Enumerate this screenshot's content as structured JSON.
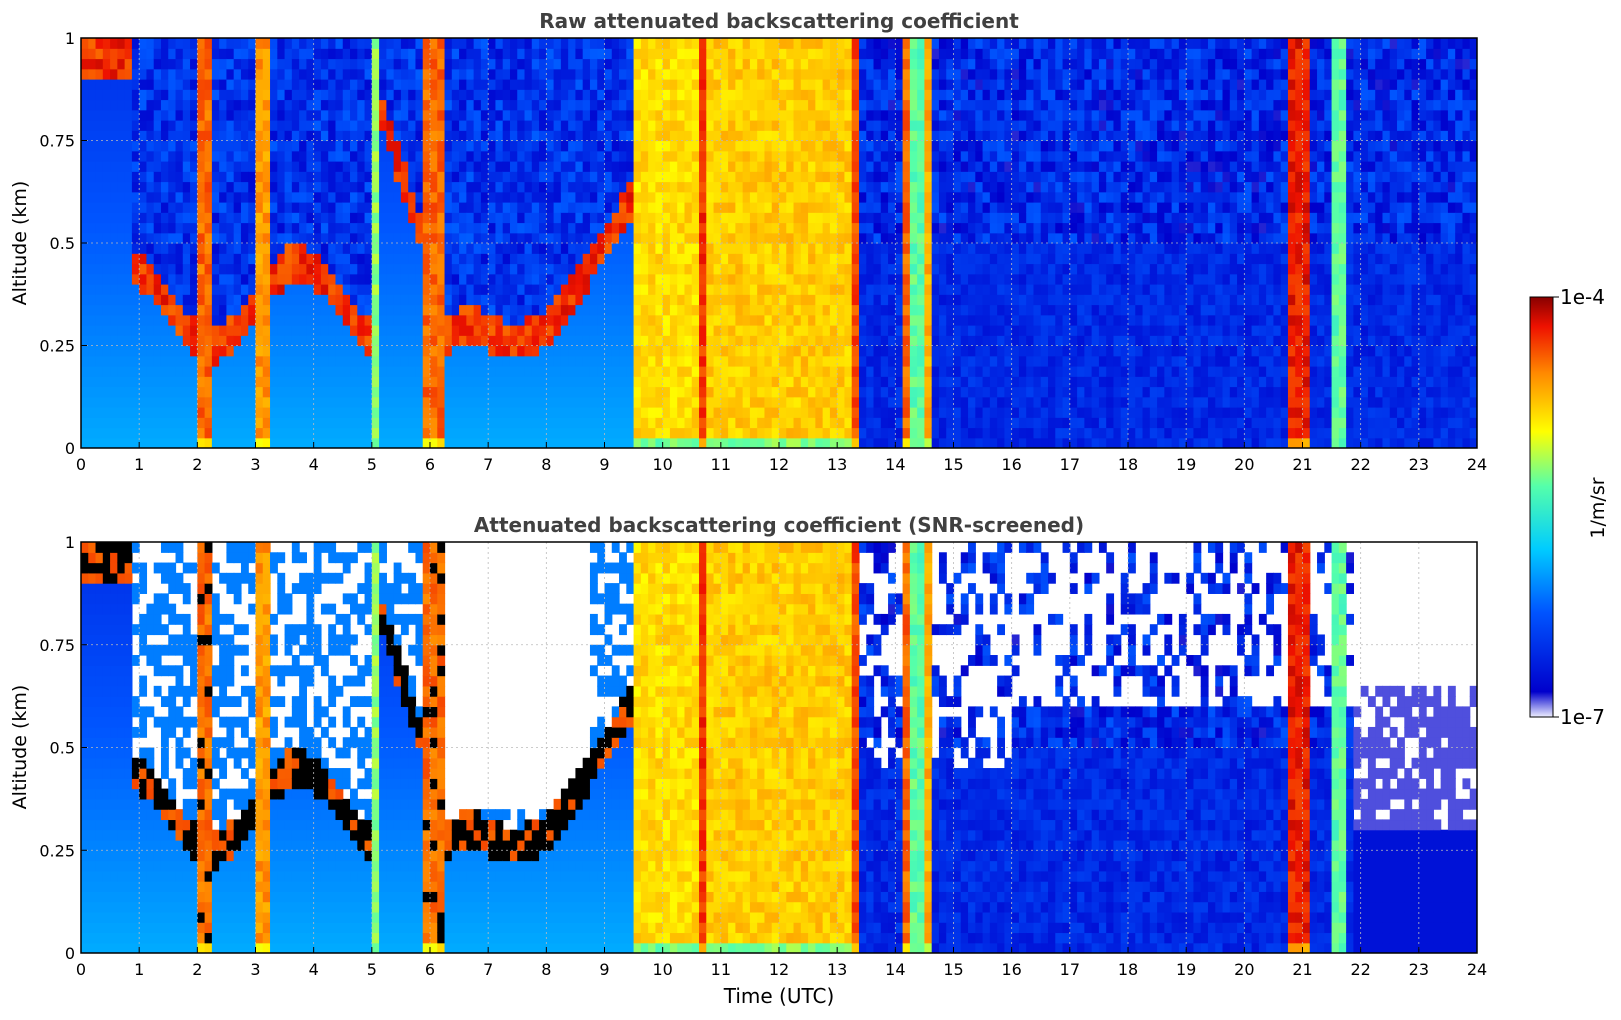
{
  "figure": {
    "xlabel": "Time (UTC)",
    "colorbar": {
      "label": "1/m/sr",
      "max_label": "1e-4",
      "min_label": "1e-7",
      "scale": "log",
      "range": [
        1e-07,
        0.0001
      ],
      "colormap": "jet"
    }
  },
  "chart_data": [
    {
      "type": "heatmap",
      "title": "Raw attenuated backscattering coefficient",
      "xlabel": "",
      "ylabel": "Altitude (km)",
      "xlim": [
        0,
        24
      ],
      "ylim": [
        0,
        1
      ],
      "xticks": [
        "0",
        "1",
        "2",
        "3",
        "4",
        "5",
        "6",
        "7",
        "8",
        "9",
        "10",
        "11",
        "12",
        "13",
        "14",
        "15",
        "16",
        "17",
        "18",
        "19",
        "20",
        "21",
        "22",
        "23",
        "24"
      ],
      "yticks": [
        "0",
        "0.25",
        "0.5",
        "0.75",
        "1"
      ],
      "grid": true,
      "screened": false
    },
    {
      "type": "heatmap",
      "title": "Attenuated backscattering coefficient (SNR-screened)",
      "xlabel": "Time (UTC)",
      "ylabel": "Altitude (km)",
      "xlim": [
        0,
        24
      ],
      "ylim": [
        0,
        1
      ],
      "xticks": [
        "0",
        "1",
        "2",
        "3",
        "4",
        "5",
        "6",
        "7",
        "8",
        "9",
        "10",
        "11",
        "12",
        "13",
        "14",
        "15",
        "16",
        "17",
        "18",
        "19",
        "20",
        "21",
        "22",
        "23",
        "24"
      ],
      "yticks": [
        "0",
        "0.25",
        "0.5",
        "0.75",
        "1"
      ],
      "grid": true,
      "screened": true
    }
  ]
}
